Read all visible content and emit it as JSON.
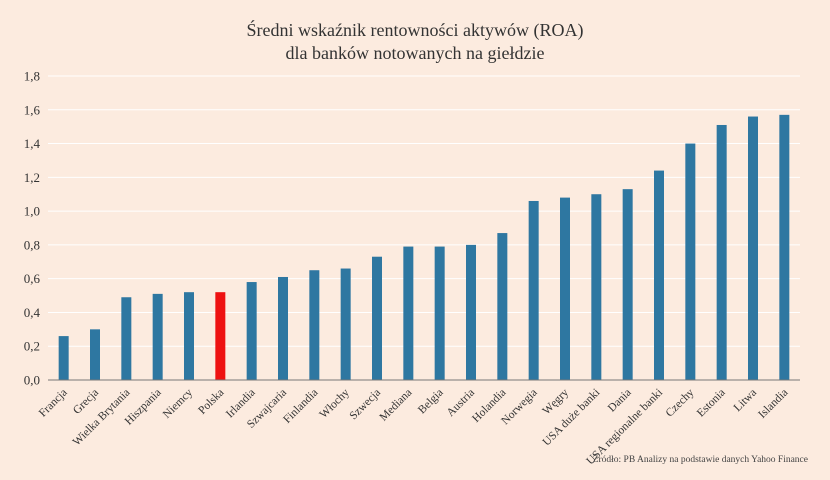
{
  "colors": {
    "background": "#fcebdf",
    "bar": "#2e77a1",
    "highlight": "#ee1111",
    "gridline": "#ffffff"
  },
  "chart_data": {
    "type": "bar",
    "title_line1": "Średni wskaźnik rentowności aktywów (ROA)",
    "title_line2": "dla banków notowanych na giełdzie",
    "xlabel": "",
    "ylabel": "",
    "ylim": [
      0,
      1.8
    ],
    "yticks": [
      "0,0",
      "0,2",
      "0,4",
      "0,6",
      "0,8",
      "1,0",
      "1,2",
      "1,4",
      "1,6",
      "1,8"
    ],
    "grid": true,
    "highlight_category": "Polska",
    "categories": [
      "Francja",
      "Grecja",
      "Wielka Brytania",
      "Hiszpania",
      "Niemcy",
      "Polska",
      "Irlandia",
      "Szwajcaria",
      "Finlandia",
      "Włochy",
      "Szwecja",
      "Mediana",
      "Belgia",
      "Austria",
      "Holandia",
      "Norwegia",
      "Węgry",
      "USA duże banki",
      "Dania",
      "USA regionalne banki",
      "Czechy",
      "Estonia",
      "Litwa",
      "Islandia"
    ],
    "values": [
      0.26,
      0.3,
      0.49,
      0.51,
      0.52,
      0.52,
      0.58,
      0.61,
      0.65,
      0.66,
      0.73,
      0.79,
      0.79,
      0.8,
      0.87,
      1.06,
      1.08,
      1.1,
      1.13,
      1.24,
      1.4,
      1.51,
      1.56,
      1.57
    ],
    "source": "Źródło: PB Analizy na podstawie danych Yahoo Finance"
  }
}
